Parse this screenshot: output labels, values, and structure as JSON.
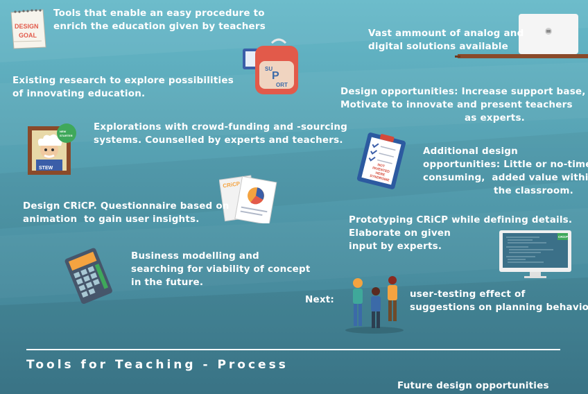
{
  "texts": {
    "t1": "Tools that enable an easy procedure to\nenrich the education given by teachers",
    "t2": "Vast ammount of analog and\ndigital solutions available",
    "t3": "Existing research to explore possibilities\nof innovating education.",
    "t4": "Design opportunities: Increase support base,\nMotivate to innovate and present teachers",
    "t4b": "as experts.",
    "t5": "Explorations with crowd-funding and -sourcing\nsystems. Counselled by experts and teachers.",
    "t6": "Additional design\nopportunities: Little or no-time\nconsuming,  added value within",
    "t6b": "the classroom.",
    "t7": "Design CRiCP. Questionnaire based on\nanimation  to gain user insights.",
    "t8": "Prototyping CRiCP while defining details.\nElaborate on given\ninput by experts.",
    "t9": "Business modelling and\nsearching for viability of concept\nin the future.",
    "next": "Next:",
    "t10": "user-testing effect of\nsuggestions on planning behaviour",
    "title": "Tools for Teaching - Process",
    "future": "Future design opportunities"
  },
  "icons": {
    "goal_note": [
      "DESIGN",
      "GOAL"
    ],
    "backpack": "SUPPORT",
    "portrait": {
      "name": "STEW",
      "badge": "NEW STARTER"
    },
    "clipboard": [
      "NOT",
      "INVENTED",
      "HERE",
      "SYNDROME"
    ],
    "questionnaire": "CRiCP",
    "monitor_logo": "CRiCP"
  },
  "colors": {
    "bg_top": "#63b6c7",
    "bg_bottom": "#3f7f92",
    "text": "#ffffff",
    "shelf": "#8a4a2a",
    "accent_red": "#e25a4a",
    "accent_orange": "#f4a340"
  }
}
